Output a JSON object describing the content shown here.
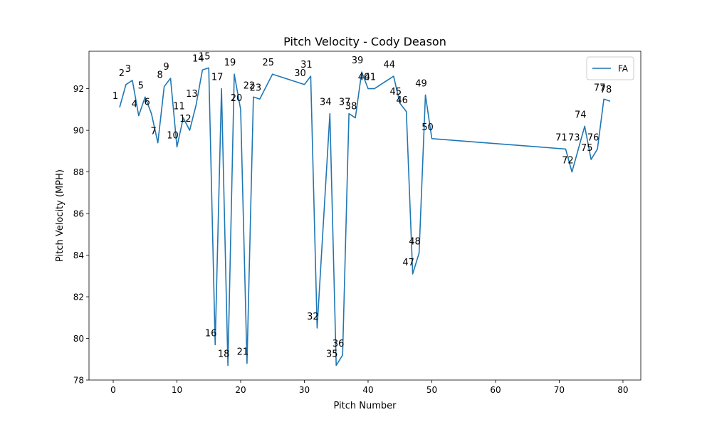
{
  "chart_data": {
    "type": "line",
    "title": "Pitch Velocity - Cody Deason",
    "xlabel": "Pitch Number",
    "ylabel": "Pitch Velocity (MPH)",
    "xlim": [
      -3.8,
      82.8
    ],
    "ylim": [
      78,
      93.8
    ],
    "xticks": [
      0,
      10,
      20,
      30,
      40,
      50,
      60,
      70,
      80
    ],
    "yticks": [
      78,
      80,
      82,
      84,
      86,
      88,
      90,
      92
    ],
    "legend": {
      "position": "top-right",
      "entries": [
        "FA"
      ]
    },
    "color": "#1f77b4",
    "series": [
      {
        "name": "FA",
        "x": [
          1,
          2,
          3,
          4,
          5,
          6,
          7,
          8,
          9,
          10,
          11,
          12,
          13,
          14,
          15,
          16,
          17,
          18,
          19,
          20,
          21,
          22,
          23,
          25,
          30,
          31,
          32,
          34,
          35,
          36,
          37,
          38,
          39,
          40,
          41,
          44,
          45,
          46,
          47,
          48,
          49,
          50,
          71,
          72,
          73,
          74,
          75,
          76,
          77,
          78
        ],
        "values": [
          91.1,
          92.2,
          92.4,
          90.7,
          91.6,
          90.8,
          89.4,
          92.1,
          92.5,
          89.2,
          90.6,
          90.0,
          91.2,
          92.9,
          93.0,
          79.7,
          92.0,
          78.7,
          92.7,
          91.0,
          78.8,
          91.6,
          91.5,
          92.7,
          92.2,
          92.6,
          80.5,
          90.8,
          78.7,
          79.2,
          90.8,
          90.6,
          92.8,
          92.0,
          92.0,
          92.6,
          91.3,
          90.9,
          83.1,
          84.1,
          91.7,
          89.6,
          89.1,
          88.0,
          89.1,
          90.2,
          88.6,
          89.1,
          91.5,
          91.4
        ],
        "labels": [
          "1",
          "2",
          "3",
          "4",
          "5",
          "6",
          "7",
          "8",
          "9",
          "10",
          "11",
          "12",
          "13",
          "14",
          "15",
          "16",
          "17",
          "18",
          "19",
          "20",
          "21",
          "22",
          "23",
          "25",
          "30",
          "31",
          "32",
          "34",
          "35",
          "36",
          "37",
          "38",
          "39",
          "40",
          "41",
          "44",
          "45",
          "46",
          "47",
          "48",
          "49",
          "50",
          "71",
          "72",
          "73",
          "74",
          "75",
          "76",
          "77",
          "78"
        ]
      }
    ]
  }
}
